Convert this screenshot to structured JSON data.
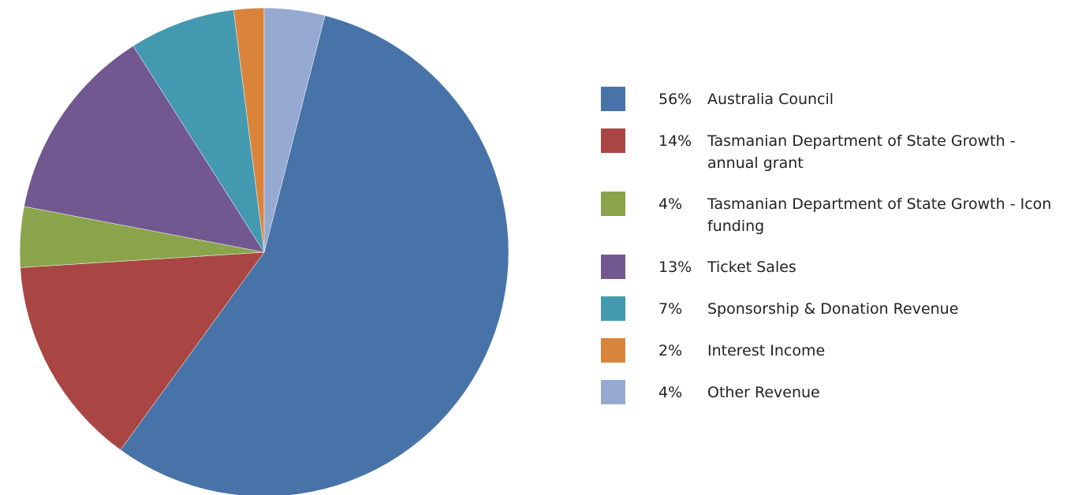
{
  "chart_data": {
    "type": "pie",
    "categories": [
      "Australia Council",
      "Tasmanian Department of State Growth - annual grant",
      "Tasmanian Department of State Growth - Icon funding",
      "Ticket Sales",
      "Sponsorship & Donation Revenue",
      "Interest Income",
      "Other Revenue"
    ],
    "values": [
      56,
      14,
      4,
      13,
      7,
      2,
      4
    ],
    "value_labels": [
      "56%",
      "14%",
      "4%",
      "13%",
      "7%",
      "2%",
      "4%"
    ],
    "colors": [
      "#4773a8",
      "#a94643",
      "#8aa44c",
      "#725891",
      "#4299b0",
      "#da843b",
      "#95a9d1"
    ],
    "legend": "right"
  }
}
